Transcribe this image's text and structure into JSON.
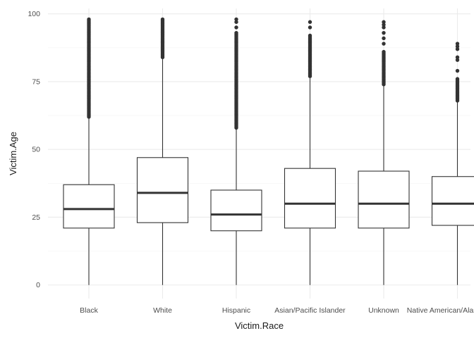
{
  "chart_data": {
    "type": "boxplot",
    "xlabel": "Victim.Race",
    "ylabel": "Victim.Age",
    "ylim": [
      -5,
      102
    ],
    "y_ticks": [
      0,
      25,
      50,
      75,
      100
    ],
    "grid": true,
    "categories": [
      "Black",
      "White",
      "Hispanic",
      "Asian/Pacific Islander",
      "Unknown",
      "Native American/Alaska Native"
    ],
    "boxes": [
      {
        "category": "Black",
        "min": 0,
        "q1": 21,
        "median": 28,
        "q3": 37,
        "max": 62,
        "outliers": {
          "dense_from": 62,
          "dense_to": 98,
          "sparse": []
        }
      },
      {
        "category": "White",
        "min": 0,
        "q1": 23,
        "median": 34,
        "q3": 47,
        "max": 84,
        "outliers": {
          "dense_from": 84,
          "dense_to": 98,
          "sparse": []
        }
      },
      {
        "category": "Hispanic",
        "min": 0,
        "q1": 20,
        "median": 26,
        "q3": 35,
        "max": 58,
        "outliers": {
          "dense_from": 58,
          "dense_to": 93,
          "sparse": [
            95,
            97,
            98
          ]
        }
      },
      {
        "category": "Asian/Pacific Islander",
        "min": 0,
        "q1": 21,
        "median": 30,
        "q3": 43,
        "max": 77,
        "outliers": {
          "dense_from": 77,
          "dense_to": 92,
          "sparse": [
            95,
            97
          ]
        }
      },
      {
        "category": "Unknown",
        "min": 0,
        "q1": 21,
        "median": 30,
        "q3": 42,
        "max": 74,
        "outliers": {
          "dense_from": 74,
          "dense_to": 86,
          "sparse": [
            89,
            91,
            93,
            95,
            96,
            97
          ]
        }
      },
      {
        "category": "Native American/Alaska Native",
        "min": 0,
        "q1": 22,
        "median": 30,
        "q3": 40,
        "max": 68,
        "outliers": {
          "dense_from": 68,
          "dense_to": 76,
          "sparse": [
            79,
            83,
            84,
            87,
            88,
            89
          ]
        }
      }
    ]
  }
}
